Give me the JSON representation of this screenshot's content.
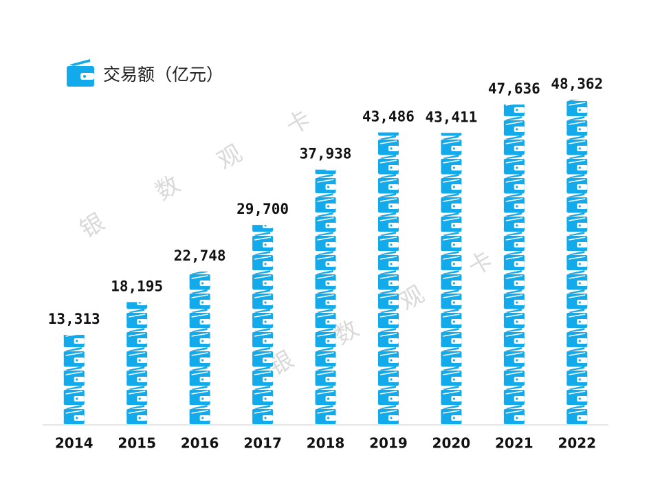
{
  "chart_data": {
    "type": "bar",
    "title": "交易额（亿元）",
    "categories": [
      "2014",
      "2015",
      "2016",
      "2017",
      "2018",
      "2019",
      "2020",
      "2021",
      "2022"
    ],
    "values": [
      13313,
      18195,
      22748,
      29700,
      37938,
      43486,
      43411,
      47636,
      48362
    ],
    "value_labels": [
      "13,313",
      "18,195",
      "22,748",
      "29,700",
      "37,938",
      "43,486",
      "43,411",
      "47,636",
      "48,362"
    ],
    "color": "#12aaeb",
    "watermark": [
      "银",
      "数",
      "观",
      "卡"
    ]
  }
}
